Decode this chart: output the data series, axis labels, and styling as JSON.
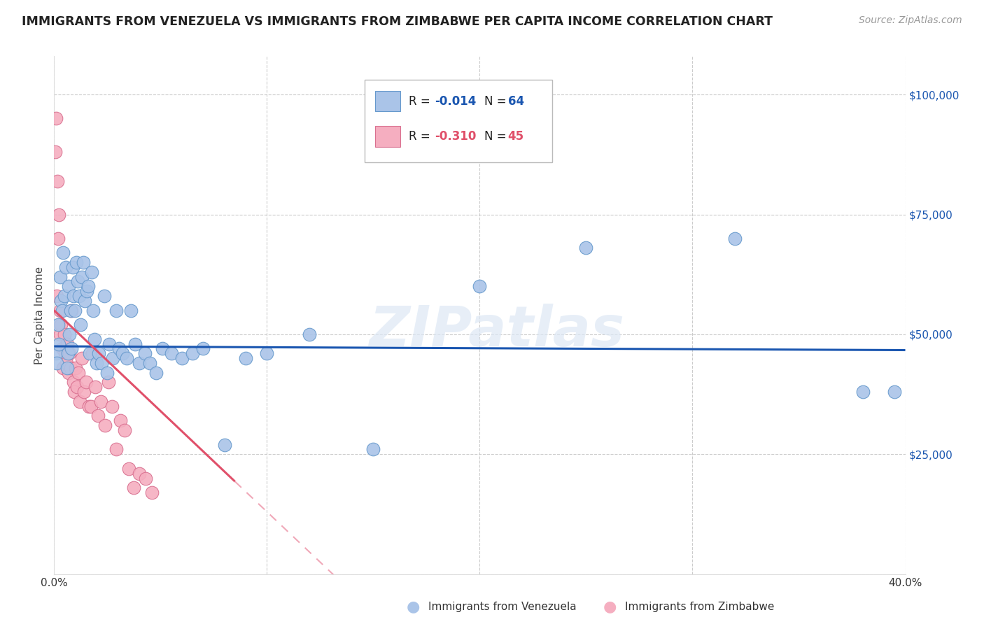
{
  "title": "IMMIGRANTS FROM VENEZUELA VS IMMIGRANTS FROM ZIMBABWE PER CAPITA INCOME CORRELATION CHART",
  "source": "Source: ZipAtlas.com",
  "ylabel": "Per Capita Income",
  "yticks": [
    0,
    25000,
    50000,
    75000,
    100000
  ],
  "xlim": [
    0.0,
    0.4
  ],
  "ylim": [
    0,
    108000
  ],
  "background_color": "#ffffff",
  "grid_color": "#cccccc",
  "watermark": "ZIPatlas",
  "venezuela_color": "#aac4e8",
  "venezuela_edge": "#6699cc",
  "zimbabwe_color": "#f5aec0",
  "zimbabwe_edge": "#d97090",
  "trend_venezuela_color": "#1a56b0",
  "trend_zimbabwe_color": "#e0506a",
  "trend_zimbabwe_dash_color": "#f0a8b8",
  "R_venezuela": -0.014,
  "N_venezuela": 64,
  "R_zimbabwe": -0.31,
  "N_zimbabwe": 45,
  "bottom_legend_venezuela": "Immigrants from Venezuela",
  "bottom_legend_zimbabwe": "Immigrants from Zimbabwe",
  "venezuela_x": [
    0.0008,
    0.0012,
    0.0018,
    0.0022,
    0.003,
    0.0032,
    0.0038,
    0.0042,
    0.0048,
    0.0055,
    0.006,
    0.0065,
    0.0068,
    0.0072,
    0.0078,
    0.0082,
    0.0088,
    0.0092,
    0.0098,
    0.0105,
    0.011,
    0.0118,
    0.0125,
    0.013,
    0.0138,
    0.0145,
    0.0152,
    0.016,
    0.0168,
    0.0175,
    0.0182,
    0.019,
    0.02,
    0.021,
    0.0222,
    0.0235,
    0.0248,
    0.026,
    0.0275,
    0.029,
    0.0305,
    0.032,
    0.034,
    0.036,
    0.038,
    0.04,
    0.0425,
    0.045,
    0.048,
    0.051,
    0.055,
    0.06,
    0.065,
    0.07,
    0.08,
    0.09,
    0.1,
    0.12,
    0.15,
    0.2,
    0.25,
    0.32,
    0.38,
    0.395
  ],
  "venezuela_y": [
    46000,
    44000,
    52000,
    48000,
    62000,
    57000,
    55000,
    67000,
    58000,
    64000,
    43000,
    46000,
    60000,
    50000,
    55000,
    47000,
    64000,
    58000,
    55000,
    65000,
    61000,
    58000,
    52000,
    62000,
    65000,
    57000,
    59000,
    60000,
    46000,
    63000,
    55000,
    49000,
    44000,
    46000,
    44000,
    58000,
    42000,
    48000,
    45000,
    55000,
    47000,
    46000,
    45000,
    55000,
    48000,
    44000,
    46000,
    44000,
    42000,
    47000,
    46000,
    45000,
    46000,
    47000,
    27000,
    45000,
    46000,
    50000,
    26000,
    60000,
    68000,
    70000,
    38000,
    38000
  ],
  "zimbabwe_x": [
    0.0005,
    0.0008,
    0.0012,
    0.0015,
    0.002,
    0.0022,
    0.0028,
    0.003,
    0.0032,
    0.0038,
    0.0042,
    0.0048,
    0.0052,
    0.0058,
    0.0062,
    0.0068,
    0.0072,
    0.0078,
    0.0082,
    0.009,
    0.0095,
    0.01,
    0.0108,
    0.0115,
    0.0122,
    0.013,
    0.014,
    0.015,
    0.0162,
    0.0172,
    0.018,
    0.0192,
    0.0205,
    0.022,
    0.0238,
    0.0255,
    0.0272,
    0.029,
    0.031,
    0.033,
    0.0352,
    0.0375,
    0.04,
    0.043,
    0.046
  ],
  "zimbabwe_y": [
    88000,
    95000,
    58000,
    82000,
    70000,
    75000,
    50000,
    55000,
    52000,
    47000,
    43000,
    50000,
    46000,
    44000,
    48000,
    42000,
    46000,
    43000,
    55000,
    40000,
    38000,
    43000,
    39000,
    42000,
    36000,
    45000,
    38000,
    40000,
    35000,
    35000,
    46000,
    39000,
    33000,
    36000,
    31000,
    40000,
    35000,
    26000,
    32000,
    30000,
    22000,
    18000,
    21000,
    20000,
    17000
  ]
}
